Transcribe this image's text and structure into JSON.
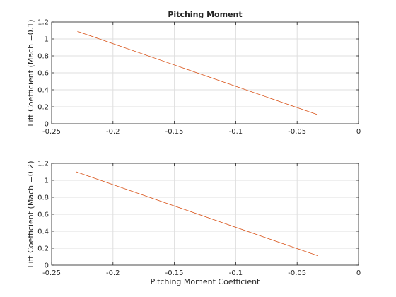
{
  "chart_data": [
    {
      "type": "line",
      "title": "Pitching Moment",
      "xlabel": "",
      "ylabel": "Lift Coefficient (Mach =0.1)",
      "xlim": [
        -0.25,
        0
      ],
      "ylim": [
        0,
        1.2
      ],
      "xticks": [
        -0.25,
        -0.2,
        -0.15,
        -0.1,
        -0.05,
        0
      ],
      "xtick_labels": [
        "-0.25",
        "-0.2",
        "-0.15",
        "-0.1",
        "-0.05",
        "0"
      ],
      "yticks": [
        0,
        0.2,
        0.4,
        0.6,
        0.8,
        1,
        1.2
      ],
      "ytick_labels": [
        "0",
        "0.2",
        "0.4",
        "0.6",
        "0.8",
        "1",
        "1.2"
      ],
      "grid": true,
      "series": [
        {
          "color": "#d95319",
          "x": [
            -0.229,
            -0.034
          ],
          "y": [
            1.09,
            0.11
          ]
        }
      ]
    },
    {
      "type": "line",
      "title": "",
      "xlabel": "Pitching Moment Coefficient",
      "ylabel": "Lift Coefficient (Mach =0.2)",
      "xlim": [
        -0.25,
        0
      ],
      "ylim": [
        0,
        1.2
      ],
      "xticks": [
        -0.25,
        -0.2,
        -0.15,
        -0.1,
        -0.05,
        0
      ],
      "xtick_labels": [
        "-0.25",
        "-0.2",
        "-0.15",
        "-0.1",
        "-0.05",
        "0"
      ],
      "yticks": [
        0,
        0.2,
        0.4,
        0.6,
        0.8,
        1,
        1.2
      ],
      "ytick_labels": [
        "0",
        "0.2",
        "0.4",
        "0.6",
        "0.8",
        "1",
        "1.2"
      ],
      "grid": true,
      "series": [
        {
          "color": "#d95319",
          "x": [
            -0.23,
            -0.033
          ],
          "y": [
            1.1,
            0.11
          ]
        }
      ]
    }
  ]
}
